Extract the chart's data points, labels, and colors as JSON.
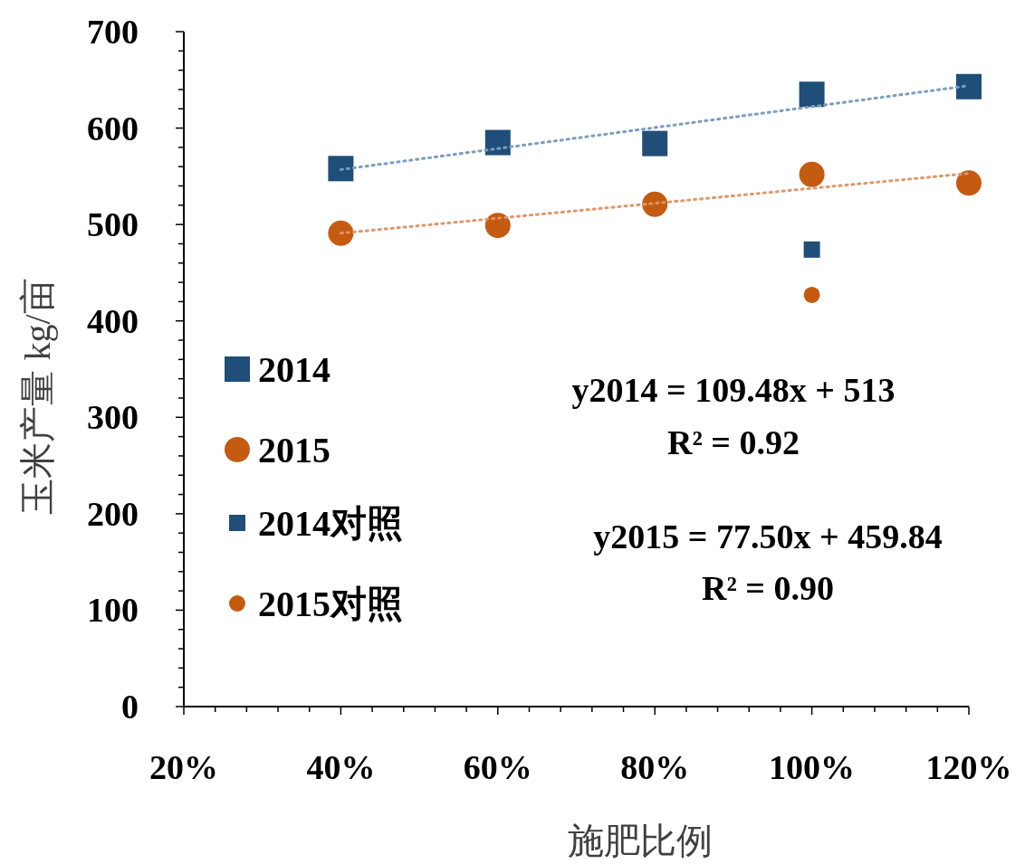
{
  "chart_data": {
    "type": "scatter",
    "xlabel": "施肥比例",
    "ylabel": "玉米产量 kg/亩",
    "xlim": [
      0.2,
      1.2
    ],
    "xticks": [
      {
        "value": 0.2,
        "label": "20%"
      },
      {
        "value": 0.24,
        "label": null
      },
      {
        "value": 0.28,
        "label": null
      },
      {
        "value": 0.32,
        "label": null
      },
      {
        "value": 0.36,
        "label": null
      },
      {
        "value": 0.4,
        "label": "40%"
      },
      {
        "value": 0.44,
        "label": null
      },
      {
        "value": 0.48,
        "label": null
      },
      {
        "value": 0.52,
        "label": null
      },
      {
        "value": 0.56,
        "label": null
      },
      {
        "value": 0.6,
        "label": "60%"
      },
      {
        "value": 0.64,
        "label": null
      },
      {
        "value": 0.68,
        "label": null
      },
      {
        "value": 0.72,
        "label": null
      },
      {
        "value": 0.76,
        "label": null
      },
      {
        "value": 0.8,
        "label": "80%"
      },
      {
        "value": 0.84,
        "label": null
      },
      {
        "value": 0.88,
        "label": null
      },
      {
        "value": 0.92,
        "label": null
      },
      {
        "value": 0.96,
        "label": null
      },
      {
        "value": 1.0,
        "label": "100%"
      },
      {
        "value": 1.04,
        "label": null
      },
      {
        "value": 1.08,
        "label": null
      },
      {
        "value": 1.12,
        "label": null
      },
      {
        "value": 1.16,
        "label": null
      },
      {
        "value": 1.2,
        "label": "120%"
      }
    ],
    "ylim": [
      0,
      700
    ],
    "yticks": [
      0,
      {
        "value": 20,
        "label": null
      },
      {
        "value": 40,
        "label": null
      },
      {
        "value": 60,
        "label": null
      },
      {
        "value": 80,
        "label": null
      },
      100,
      {
        "value": 120,
        "label": null
      },
      {
        "value": 140,
        "label": null
      },
      {
        "value": 160,
        "label": null
      },
      {
        "value": 180,
        "label": null
      },
      200,
      {
        "value": 220,
        "label": null
      },
      {
        "value": 240,
        "label": null
      },
      {
        "value": 260,
        "label": null
      },
      {
        "value": 280,
        "label": null
      },
      300,
      {
        "value": 320,
        "label": null
      },
      {
        "value": 340,
        "label": null
      },
      {
        "value": 360,
        "label": null
      },
      {
        "value": 380,
        "label": null
      },
      400,
      {
        "value": 420,
        "label": null
      },
      {
        "value": 440,
        "label": null
      },
      {
        "value": 460,
        "label": null
      },
      {
        "value": 480,
        "label": null
      },
      500,
      {
        "value": 520,
        "label": null
      },
      {
        "value": 540,
        "label": null
      },
      {
        "value": 560,
        "label": null
      },
      {
        "value": 580,
        "label": null
      },
      600,
      {
        "value": 620,
        "label": null
      },
      {
        "value": 640,
        "label": null
      },
      {
        "value": 660,
        "label": null
      },
      {
        "value": 680,
        "label": null
      },
      700
    ],
    "grid": false,
    "legend": "left",
    "series": [
      {
        "name": "2014",
        "color": "#1f4e79",
        "marker": "square",
        "x": [
          0.4,
          0.6,
          0.8,
          1.0,
          1.2
        ],
        "values": [
          558,
          585,
          584,
          635,
          643
        ]
      },
      {
        "name": "2015",
        "color": "#c55a11",
        "marker": "circle",
        "x": [
          0.4,
          0.6,
          0.8,
          1.0,
          1.2
        ],
        "values": [
          491,
          499,
          521,
          552,
          543
        ]
      },
      {
        "name": "2014对照",
        "color": "#1f4e79",
        "marker": "square",
        "x": [
          1.0
        ],
        "values": [
          474
        ]
      },
      {
        "name": "2015对照",
        "color": "#c55a11",
        "marker": "circle",
        "x": [
          1.0
        ],
        "values": [
          427
        ]
      },
      {
        "type": "line",
        "color": "#7c9cc0",
        "marker": "none",
        "line_style": "dotted",
        "x": [
          0.4,
          1.2
        ],
        "values": [
          557,
          644
        ]
      },
      {
        "type": "line",
        "color": "#e0956a",
        "marker": "none",
        "line_style": "dotted",
        "x": [
          0.4,
          1.2
        ],
        "values": [
          491,
          553
        ]
      }
    ],
    "annotations": [
      "y2014 = 109.48x + 513",
      "R² = 0.92",
      "y2015 = 77.50x + 459.84",
      "R² = 0.90"
    ]
  }
}
